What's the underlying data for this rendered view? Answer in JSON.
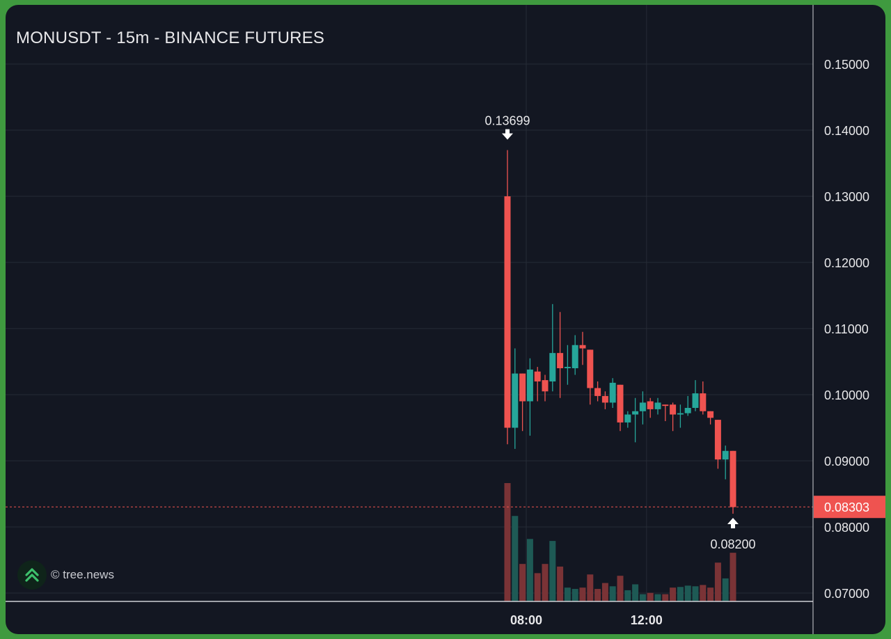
{
  "header": {
    "title": "MONUSDT - 15m - BINANCE FUTURES"
  },
  "watermark": {
    "text": "© tree.news",
    "icon": "tree-news-logo-icon"
  },
  "colors": {
    "background": "#131722",
    "bullish": "#26a69a",
    "bearish": "#ef5350",
    "grid": "#262b36",
    "text": "#e8e8ea"
  },
  "chart_data": {
    "type": "candlestick",
    "title": "MONUSDT - 15m - BINANCE FUTURES",
    "ylim": [
      0.068,
      0.158
    ],
    "y_ticks": [
      "0.15000",
      "0.14000",
      "0.13000",
      "0.12000",
      "0.11000",
      "0.10000",
      "0.09000",
      "0.08000",
      "0.07000"
    ],
    "x_ticks": [
      {
        "label": "08:00",
        "index": 2.5
      },
      {
        "label": "12:00",
        "index": 18.5
      }
    ],
    "grid": true,
    "interval": "15m",
    "candles": [
      {
        "o": 0.13,
        "h": 0.13699,
        "l": 0.0925,
        "c": 0.095,
        "v": 18
      },
      {
        "o": 0.095,
        "h": 0.107,
        "l": 0.0918,
        "c": 0.1032,
        "v": 13
      },
      {
        "o": 0.1032,
        "h": 0.1032,
        "l": 0.0945,
        "c": 0.099,
        "v": 5.7
      },
      {
        "o": 0.099,
        "h": 0.1055,
        "l": 0.0938,
        "c": 0.1038,
        "v": 9.5
      },
      {
        "o": 0.1035,
        "h": 0.1042,
        "l": 0.099,
        "c": 0.102,
        "v": 4.3
      },
      {
        "o": 0.1022,
        "h": 0.103,
        "l": 0.099,
        "c": 0.1005,
        "v": 5.7
      },
      {
        "o": 0.102,
        "h": 0.1137,
        "l": 0.1005,
        "c": 0.1063,
        "v": 9.2
      },
      {
        "o": 0.1063,
        "h": 0.1125,
        "l": 0.0995,
        "c": 0.104,
        "v": 5.3
      },
      {
        "o": 0.104,
        "h": 0.1075,
        "l": 0.1015,
        "c": 0.1042,
        "v": 2.1
      },
      {
        "o": 0.104,
        "h": 0.109,
        "l": 0.103,
        "c": 0.1075,
        "v": 1.9
      },
      {
        "o": 0.1075,
        "h": 0.1095,
        "l": 0.1045,
        "c": 0.107,
        "v": 2.1
      },
      {
        "o": 0.1068,
        "h": 0.1068,
        "l": 0.0985,
        "c": 0.101,
        "v": 4.1
      },
      {
        "o": 0.101,
        "h": 0.102,
        "l": 0.099,
        "c": 0.0998,
        "v": 1.9
      },
      {
        "o": 0.0998,
        "h": 0.1005,
        "l": 0.0978,
        "c": 0.0988,
        "v": 2.8
      },
      {
        "o": 0.0988,
        "h": 0.1025,
        "l": 0.098,
        "c": 0.1018,
        "v": 2.3
      },
      {
        "o": 0.1015,
        "h": 0.1015,
        "l": 0.0945,
        "c": 0.0958,
        "v": 3.9
      },
      {
        "o": 0.0958,
        "h": 0.0975,
        "l": 0.095,
        "c": 0.097,
        "v": 1.7
      },
      {
        "o": 0.097,
        "h": 0.0995,
        "l": 0.0928,
        "c": 0.0975,
        "v": 2.6
      },
      {
        "o": 0.0975,
        "h": 0.1005,
        "l": 0.0955,
        "c": 0.0988,
        "v": 1.1
      },
      {
        "o": 0.099,
        "h": 0.0995,
        "l": 0.0965,
        "c": 0.0978,
        "v": 1.3
      },
      {
        "o": 0.0978,
        "h": 0.0995,
        "l": 0.097,
        "c": 0.0988,
        "v": 1.1
      },
      {
        "o": 0.0985,
        "h": 0.0985,
        "l": 0.096,
        "c": 0.0983,
        "v": 1.1
      },
      {
        "o": 0.0985,
        "h": 0.0988,
        "l": 0.0945,
        "c": 0.097,
        "v": 2.1
      },
      {
        "o": 0.097,
        "h": 0.0985,
        "l": 0.095,
        "c": 0.0972,
        "v": 2.2
      },
      {
        "o": 0.0972,
        "h": 0.0998,
        "l": 0.0968,
        "c": 0.098,
        "v": 2.4
      },
      {
        "o": 0.098,
        "h": 0.1022,
        "l": 0.0975,
        "c": 0.1002,
        "v": 2.3
      },
      {
        "o": 0.1002,
        "h": 0.102,
        "l": 0.097,
        "c": 0.0975,
        "v": 2.5
      },
      {
        "o": 0.0975,
        "h": 0.0975,
        "l": 0.0955,
        "c": 0.0965,
        "v": 2.1
      },
      {
        "o": 0.0962,
        "h": 0.0962,
        "l": 0.0888,
        "c": 0.0902,
        "v": 5.9
      },
      {
        "o": 0.0902,
        "h": 0.0923,
        "l": 0.0872,
        "c": 0.0915,
        "v": 3.5
      },
      {
        "o": 0.0915,
        "h": 0.0915,
        "l": 0.082,
        "c": 0.083,
        "v": 7.4
      }
    ],
    "annotations": [
      {
        "label": "0.13699",
        "type": "high",
        "index": 0,
        "price": 0.13699
      },
      {
        "label": "0.08200",
        "type": "low",
        "index": 30,
        "price": 0.082
      }
    ],
    "current_price": {
      "label": "0.08303",
      "value": 0.08303
    }
  }
}
